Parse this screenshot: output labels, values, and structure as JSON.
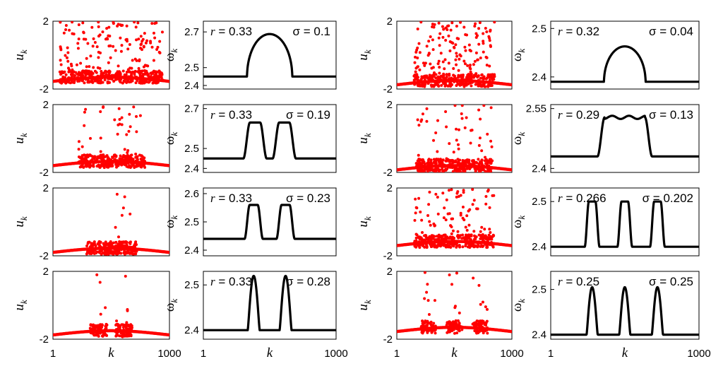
{
  "figure": {
    "description_labels": {
      "u_axis_main": "u",
      "u_axis_sub": "k",
      "w_axis_main": "ω",
      "w_axis_sub": "k",
      "x_axis_label": "k",
      "x_tick_min": "1",
      "x_tick_max": "1000"
    }
  },
  "chart_data": [
    {
      "type": "scatter",
      "panel": "u",
      "col": 0,
      "row": 0,
      "xlim": [
        1,
        1000
      ],
      "ylim": [
        -2,
        2
      ],
      "yticks": [
        "2",
        "-2"
      ],
      "xlabel": "",
      "ylabel": "u_k",
      "series": [
        {
          "color": "#ff0000",
          "baseline": -1.55,
          "scatter_ranges": [
            [
              60,
              940
            ]
          ],
          "upper_fraction": 0.32
        }
      ]
    },
    {
      "type": "line",
      "panel": "w",
      "col": 0,
      "row": 0,
      "xlim": [
        1,
        1000
      ],
      "ylim": [
        2.38,
        2.76
      ],
      "yticks": [
        "2.7",
        "2.5",
        "2.4"
      ],
      "ylabel": "ω_k",
      "r_label": "r = 0.33",
      "sigma_label": "σ = 0.1",
      "baseline": 2.45,
      "series": [
        {
          "color": "#000000",
          "bumps": [
            {
              "center": 500,
              "width": 340,
              "height": 0.238,
              "shape": "dome"
            }
          ]
        }
      ]
    },
    {
      "type": "scatter",
      "panel": "u",
      "col": 0,
      "row": 1,
      "xlim": [
        1,
        1000
      ],
      "ylim": [
        -2,
        2
      ],
      "yticks": [
        "2",
        "-2"
      ],
      "ylabel": "u_k",
      "series": [
        {
          "color": "#ff0000",
          "baseline": -1.6,
          "scatter_ranges": [
            [
              220,
              790
            ]
          ],
          "upper_fraction": 0.1
        }
      ]
    },
    {
      "type": "line",
      "panel": "w",
      "col": 0,
      "row": 1,
      "xlim": [
        1,
        1000
      ],
      "ylim": [
        2.38,
        2.72
      ],
      "yticks": [
        "2.7",
        "2.5",
        "2.4"
      ],
      "ylabel": "ω_k",
      "r_label": "r = 0.33",
      "sigma_label": "σ = 0.19",
      "baseline": 2.45,
      "series": [
        {
          "color": "#000000",
          "bumps": [
            {
              "center": 390,
              "width": 140,
              "height": 0.18,
              "shape": "soft"
            },
            {
              "center": 610,
              "width": 140,
              "height": 0.18,
              "shape": "soft"
            }
          ]
        }
      ]
    },
    {
      "type": "scatter",
      "panel": "u",
      "col": 0,
      "row": 2,
      "xlim": [
        1,
        1000
      ],
      "ylim": [
        -2,
        2
      ],
      "yticks": [
        "2",
        "-2"
      ],
      "ylabel": "u_k",
      "series": [
        {
          "color": "#ff0000",
          "baseline": -1.8,
          "scatter_ranges": [
            [
              290,
              720
            ]
          ],
          "upper_fraction": 0.04
        }
      ]
    },
    {
      "type": "line",
      "panel": "w",
      "col": 0,
      "row": 2,
      "xlim": [
        1,
        1000
      ],
      "ylim": [
        2.38,
        2.62
      ],
      "yticks": [
        "2.6",
        "2.5",
        "2.4"
      ],
      "ylabel": "ω_k",
      "r_label": "r = 0.33",
      "sigma_label": "σ = 0.23",
      "baseline": 2.44,
      "series": [
        {
          "color": "#000000",
          "bumps": [
            {
              "center": 380,
              "width": 110,
              "height": 0.12,
              "shape": "soft"
            },
            {
              "center": 620,
              "width": 110,
              "height": 0.12,
              "shape": "soft"
            }
          ]
        }
      ]
    },
    {
      "type": "scatter",
      "panel": "u",
      "col": 0,
      "row": 3,
      "xlim": [
        1,
        1000
      ],
      "ylim": [
        -2,
        2
      ],
      "yticks": [
        "2",
        "-2"
      ],
      "xlabel": "k",
      "xticks": [
        "1",
        "1000"
      ],
      "ylabel": "u_k",
      "series": [
        {
          "color": "#ff0000",
          "baseline": -1.75,
          "scatter_ranges": [
            [
              320,
              470
            ],
            [
              530,
              680
            ]
          ],
          "upper_fraction": 0.06
        }
      ]
    },
    {
      "type": "line",
      "panel": "w",
      "col": 0,
      "row": 3,
      "xlim": [
        1,
        1000
      ],
      "ylim": [
        2.38,
        2.53
      ],
      "yticks": [
        "2.5",
        "2.4"
      ],
      "xlabel": "k",
      "xticks": [
        "1",
        "1000"
      ],
      "ylabel": "ω_k",
      "r_label": "r = 0.33",
      "sigma_label": "σ = 0.28",
      "baseline": 2.4,
      "series": [
        {
          "color": "#000000",
          "bumps": [
            {
              "center": 380,
              "width": 90,
              "height": 0.12,
              "shape": "peak"
            },
            {
              "center": 620,
              "width": 90,
              "height": 0.12,
              "shape": "peak"
            }
          ]
        }
      ]
    },
    {
      "type": "scatter",
      "panel": "u",
      "col": 1,
      "row": 0,
      "xlim": [
        1,
        1000
      ],
      "ylim": [
        -2,
        2
      ],
      "yticks": [
        "2",
        "-2"
      ],
      "ylabel": "u_k",
      "series": [
        {
          "color": "#ff0000",
          "baseline": -1.75,
          "scatter_ranges": [
            [
              150,
              850
            ]
          ],
          "upper_fraction": 0.3
        }
      ]
    },
    {
      "type": "line",
      "panel": "w",
      "col": 1,
      "row": 0,
      "xlim": [
        1,
        1000
      ],
      "ylim": [
        2.375,
        2.515
      ],
      "yticks": [
        "2.5",
        "2.4"
      ],
      "ylabel": "ω_k",
      "r_label": "r = 0.32",
      "sigma_label": "σ = 0.04",
      "baseline": 2.39,
      "series": [
        {
          "color": "#000000",
          "bumps": [
            {
              "center": 500,
              "width": 280,
              "height": 0.073,
              "shape": "dome"
            }
          ]
        }
      ]
    },
    {
      "type": "scatter",
      "panel": "u",
      "col": 1,
      "row": 1,
      "xlim": [
        1,
        1000
      ],
      "ylim": [
        -2,
        2
      ],
      "yticks": [
        "2",
        "-2"
      ],
      "ylabel": "u_k",
      "series": [
        {
          "color": "#ff0000",
          "baseline": -1.85,
          "scatter_ranges": [
            [
              170,
              830
            ]
          ],
          "upper_fraction": 0.15
        }
      ]
    },
    {
      "type": "line",
      "panel": "w",
      "col": 1,
      "row": 1,
      "xlim": [
        1,
        1000
      ],
      "ylim": [
        2.39,
        2.56
      ],
      "yticks": [
        "2.55",
        "2.4"
      ],
      "ylabel": "ω_k",
      "r_label": "r = 0.29",
      "sigma_label": "σ = 0.13",
      "baseline": 2.43,
      "series": [
        {
          "color": "#000000",
          "bumps": [
            {
              "center": 500,
              "width": 320,
              "height": 0.098,
              "shape": "flat_wavy"
            }
          ]
        }
      ]
    },
    {
      "type": "scatter",
      "panel": "u",
      "col": 1,
      "row": 2,
      "xlim": [
        1,
        1000
      ],
      "ylim": [
        -2,
        2
      ],
      "yticks": [
        "2",
        "-2"
      ],
      "ylabel": "u_k",
      "series": [
        {
          "color": "#ff0000",
          "baseline": -1.4,
          "scatter_ranges": [
            [
              150,
              850
            ]
          ],
          "upper_fraction": 0.2
        }
      ]
    },
    {
      "type": "line",
      "panel": "w",
      "col": 1,
      "row": 2,
      "xlim": [
        1,
        1000
      ],
      "ylim": [
        2.38,
        2.53
      ],
      "yticks": [
        "2.5",
        "2.4"
      ],
      "ylabel": "ω_k",
      "r_label": "r = 0.266",
      "sigma_label": "σ = 0.202",
      "baseline": 2.4,
      "series": [
        {
          "color": "#000000",
          "bumps": [
            {
              "center": 280,
              "width": 80,
              "height": 0.1,
              "shape": "soft"
            },
            {
              "center": 500,
              "width": 80,
              "height": 0.1,
              "shape": "soft"
            },
            {
              "center": 720,
              "width": 80,
              "height": 0.1,
              "shape": "soft"
            }
          ]
        }
      ]
    },
    {
      "type": "scatter",
      "panel": "u",
      "col": 1,
      "row": 3,
      "xlim": [
        1,
        1000
      ],
      "ylim": [
        -2,
        2
      ],
      "yticks": [
        "2",
        "-2"
      ],
      "xlabel": "k",
      "xticks": [
        "1",
        "1000"
      ],
      "ylabel": "u_k",
      "series": [
        {
          "color": "#ff0000",
          "baseline": -1.55,
          "scatter_ranges": [
            [
              210,
              340
            ],
            [
              430,
              570
            ],
            [
              660,
              790
            ]
          ],
          "upper_fraction": 0.08
        }
      ]
    },
    {
      "type": "line",
      "panel": "w",
      "col": 1,
      "row": 3,
      "xlim": [
        1,
        1000
      ],
      "ylim": [
        2.39,
        2.54
      ],
      "yticks": [
        "2.5",
        "2.4"
      ],
      "xlabel": "k",
      "xticks": [
        "1",
        "1000"
      ],
      "ylabel": "ω_k",
      "r_label": "r = 0.25",
      "sigma_label": "σ = 0.25",
      "baseline": 2.4,
      "series": [
        {
          "color": "#000000",
          "bumps": [
            {
              "center": 280,
              "width": 75,
              "height": 0.105,
              "shape": "peak"
            },
            {
              "center": 500,
              "width": 75,
              "height": 0.105,
              "shape": "peak"
            },
            {
              "center": 720,
              "width": 75,
              "height": 0.105,
              "shape": "peak"
            }
          ]
        }
      ]
    }
  ]
}
